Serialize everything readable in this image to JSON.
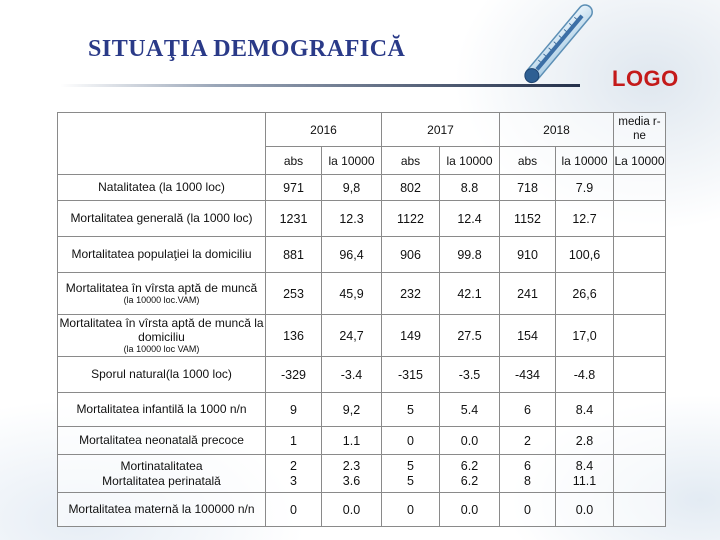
{
  "slide": {
    "title": "SITUAŢIA DEMOGRAFICĂ",
    "logo": "LOGO"
  },
  "table": {
    "year_headers": [
      "2016",
      "2017",
      "2018"
    ],
    "extra_header": "media r-ne",
    "sub_headers": [
      "abs",
      "la 10000",
      "abs",
      "la 10000",
      "abs",
      "la 10000",
      "La 10000"
    ],
    "rows": [
      {
        "label": "Natalitatea (la 1000 loc)",
        "values": [
          "971",
          "9,8",
          "802",
          "8.8",
          "718",
          "7.9",
          ""
        ]
      },
      {
        "label": "Mortalitatea generală (la 1000 loc)",
        "values": [
          "1231",
          "12.3",
          "1122",
          "12.4",
          "1152",
          "12.7",
          ""
        ]
      },
      {
        "label": "Mortalitatea populaţiei la domiciliu",
        "values": [
          "881",
          "96,4",
          "906",
          "99.8",
          "910",
          "100,6",
          ""
        ]
      },
      {
        "label": "Mortalitatea în vîrsta aptă de muncă",
        "note": "(la 10000 loc.VAM)",
        "values": [
          "253",
          "45,9",
          "232",
          "42.1",
          "241",
          "26,6",
          ""
        ]
      },
      {
        "label": "Mortalitatea în vîrsta aptă de muncă la domiciliu",
        "note": "(la 10000 loc VAM)",
        "values": [
          "136",
          "24,7",
          "149",
          "27.5",
          "154",
          "17,0",
          ""
        ]
      },
      {
        "label": "Sporul natural(la 1000 loc)",
        "values": [
          "-329",
          "-3.4",
          "-315",
          "-3.5",
          "-434",
          "-4.8",
          ""
        ]
      },
      {
        "label": "Mortalitatea infantilă la 1000 n/n",
        "values": [
          "9",
          "9,2",
          "5",
          "5.4",
          "6",
          "8.4",
          ""
        ]
      },
      {
        "label": "Mortalitatea neonatală precoce",
        "values": [
          "1",
          "1.1",
          "0",
          "0.0",
          "2",
          "2.8",
          ""
        ]
      },
      {
        "label": "Mortinatalitatea",
        "label2": "Mortalitatea perinatală",
        "values2": [
          [
            "2",
            "3"
          ],
          [
            "2.3",
            "3.6"
          ],
          [
            "5",
            "5"
          ],
          [
            "6.2",
            "6.2"
          ],
          [
            "6",
            "8"
          ],
          [
            "8.4",
            "11.1"
          ],
          [
            "",
            ""
          ]
        ]
      },
      {
        "label": "Mortalitatea maternă la 100000 n/n",
        "values": [
          "0",
          "0.0",
          "0",
          "0.0",
          "0",
          "0.0",
          ""
        ]
      }
    ]
  },
  "colors": {
    "title": "#2a3a88",
    "logo": "#c41a1a",
    "border": "#8a8a8a"
  },
  "icons": [
    "thermometer-icon"
  ]
}
